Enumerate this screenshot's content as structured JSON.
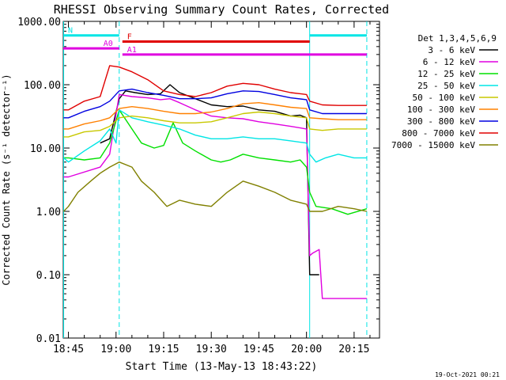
{
  "chart_data": {
    "type": "line",
    "title": "RHESSI Observing Summary Count Rates, Corrected",
    "ylabel": "Corrected Count Rate (s⁻¹ detector⁻¹)",
    "xlabel": "Start Time (13-May-13 18:43:22)",
    "yscale": "log",
    "ylim": [
      0.01,
      1000
    ],
    "xlim": [
      "18:43:22",
      "20:23"
    ],
    "y_ticks": [
      "0.01",
      "0.10",
      "1.00",
      "10.00",
      "100.00",
      "1000.00"
    ],
    "x_ticks": [
      "18:45",
      "19:00",
      "19:15",
      "19:30",
      "19:45",
      "20:00",
      "20:15"
    ],
    "legend_title": "Det 1,3,4,5,6,9",
    "legend_placement": "right, outside plot",
    "footer_date": "19-Oct-2021 00:21",
    "flag_bars": [
      {
        "label": "N",
        "color": "#00e5e5",
        "segments": [
          [
            "18:43:22",
            "19:01"
          ],
          [
            "20:01",
            "20:19"
          ]
        ],
        "y": 600
      },
      {
        "label": "F",
        "color": "#e00000",
        "segments": [
          [
            "19:02",
            "20:01"
          ]
        ],
        "y": 480
      },
      {
        "label": "A0",
        "color": "#e000e0",
        "segments": [
          [
            "18:43:22",
            "19:01"
          ]
        ],
        "y": 375
      },
      {
        "label": "A1",
        "color": "#e000e0",
        "segments": [
          [
            "19:02",
            "20:19"
          ]
        ],
        "y": 300
      }
    ],
    "vertical_markers": [
      {
        "time": "18:43:30",
        "style": "solid",
        "color": "#00e5e5"
      },
      {
        "time": "19:01",
        "style": "dashed",
        "color": "#00e5e5"
      },
      {
        "time": "20:01",
        "style": "solid",
        "color": "#00e5e5"
      },
      {
        "time": "20:19",
        "style": "dashed",
        "color": "#00e5e5"
      }
    ],
    "series": [
      {
        "name": "3 - 6 keV",
        "color": "#000000",
        "points": [
          [
            "18:55",
            12
          ],
          [
            "18:58",
            14
          ],
          [
            "19:01",
            60
          ],
          [
            "19:03",
            80
          ],
          [
            "19:06",
            75
          ],
          [
            "19:10",
            70
          ],
          [
            "19:14",
            72
          ],
          [
            "19:17",
            100
          ],
          [
            "19:20",
            75
          ],
          [
            "19:25",
            60
          ],
          [
            "19:30",
            48
          ],
          [
            "19:35",
            45
          ],
          [
            "19:40",
            46
          ],
          [
            "19:45",
            40
          ],
          [
            "19:50",
            38
          ],
          [
            "19:55",
            32
          ],
          [
            "19:58",
            33
          ],
          [
            "20:00",
            30
          ],
          [
            "20:01",
            0.1
          ],
          [
            "20:02",
            0.1
          ],
          [
            "20:04",
            0.1
          ]
        ]
      },
      {
        "name": "6 - 12 keV",
        "color": "#e000e0",
        "points": [
          [
            "18:43:30",
            3.5
          ],
          [
            "18:45",
            3.5
          ],
          [
            "18:55",
            5
          ],
          [
            "18:58",
            8
          ],
          [
            "19:01",
            70
          ],
          [
            "19:05",
            65
          ],
          [
            "19:10",
            62
          ],
          [
            "19:14",
            58
          ],
          [
            "19:17",
            60
          ],
          [
            "19:20",
            52
          ],
          [
            "19:25",
            40
          ],
          [
            "19:30",
            32
          ],
          [
            "19:35",
            30
          ],
          [
            "19:40",
            29
          ],
          [
            "19:45",
            26
          ],
          [
            "19:50",
            24
          ],
          [
            "19:55",
            22
          ],
          [
            "20:00",
            20
          ],
          [
            "20:01",
            0.2
          ],
          [
            "20:02",
            0.22
          ],
          [
            "20:04",
            0.25
          ],
          [
            "20:05",
            0.042
          ],
          [
            "20:19",
            0.042
          ]
        ]
      },
      {
        "name": "12 - 25 keV",
        "color": "#00e000",
        "points": [
          [
            "18:43:30",
            7
          ],
          [
            "18:45",
            7
          ],
          [
            "18:50",
            6.5
          ],
          [
            "18:55",
            7
          ],
          [
            "18:58",
            12
          ],
          [
            "19:01",
            40
          ],
          [
            "19:05",
            20
          ],
          [
            "19:08",
            12
          ],
          [
            "19:12",
            10
          ],
          [
            "19:15",
            11
          ],
          [
            "19:18",
            25
          ],
          [
            "19:21",
            12
          ],
          [
            "19:25",
            9
          ],
          [
            "19:30",
            6.5
          ],
          [
            "19:33",
            6
          ],
          [
            "19:36",
            6.5
          ],
          [
            "19:40",
            8
          ],
          [
            "19:45",
            7
          ],
          [
            "19:50",
            6.5
          ],
          [
            "19:55",
            6
          ],
          [
            "19:58",
            6.5
          ],
          [
            "20:00",
            5
          ],
          [
            "20:01",
            2
          ],
          [
            "20:03",
            1.2
          ],
          [
            "20:08",
            1.1
          ],
          [
            "20:13",
            0.9
          ],
          [
            "20:19",
            1.1
          ]
        ]
      },
      {
        "name": "25 - 50 keV",
        "color": "#00e5e5",
        "points": [
          [
            "18:43:30",
            7
          ],
          [
            "18:45",
            6
          ],
          [
            "18:50",
            9
          ],
          [
            "18:55",
            13
          ],
          [
            "18:58",
            20
          ],
          [
            "19:00",
            12
          ],
          [
            "19:01",
            40
          ],
          [
            "19:05",
            30
          ],
          [
            "19:10",
            26
          ],
          [
            "19:15",
            23
          ],
          [
            "19:20",
            20
          ],
          [
            "19:25",
            16
          ],
          [
            "19:30",
            14
          ],
          [
            "19:35",
            14
          ],
          [
            "19:40",
            15
          ],
          [
            "19:45",
            14
          ],
          [
            "19:50",
            14
          ],
          [
            "19:55",
            13
          ],
          [
            "20:00",
            12
          ],
          [
            "20:01",
            8
          ],
          [
            "20:03",
            6
          ],
          [
            "20:06",
            7
          ],
          [
            "20:10",
            8
          ],
          [
            "20:15",
            7
          ],
          [
            "20:19",
            7
          ]
        ]
      },
      {
        "name": "50 - 100 keV",
        "color": "#c8c800",
        "points": [
          [
            "18:43:30",
            15
          ],
          [
            "18:45",
            15
          ],
          [
            "18:50",
            18
          ],
          [
            "18:55",
            19
          ],
          [
            "18:58",
            22
          ],
          [
            "19:01",
            30
          ],
          [
            "19:05",
            32
          ],
          [
            "19:10",
            30
          ],
          [
            "19:15",
            27
          ],
          [
            "19:20",
            25
          ],
          [
            "19:25",
            25
          ],
          [
            "19:30",
            26
          ],
          [
            "19:35",
            30
          ],
          [
            "19:40",
            35
          ],
          [
            "19:45",
            37
          ],
          [
            "19:50",
            35
          ],
          [
            "19:55",
            32
          ],
          [
            "20:00",
            30
          ],
          [
            "20:01",
            20
          ],
          [
            "20:05",
            19
          ],
          [
            "20:10",
            20
          ],
          [
            "20:15",
            20
          ],
          [
            "20:19",
            20
          ]
        ]
      },
      {
        "name": "100 - 300 keV",
        "color": "#ff8000",
        "points": [
          [
            "18:43:30",
            20
          ],
          [
            "18:45",
            20
          ],
          [
            "18:50",
            24
          ],
          [
            "18:55",
            27
          ],
          [
            "18:58",
            30
          ],
          [
            "19:01",
            42
          ],
          [
            "19:05",
            45
          ],
          [
            "19:10",
            42
          ],
          [
            "19:15",
            38
          ],
          [
            "19:20",
            35
          ],
          [
            "19:25",
            35
          ],
          [
            "19:30",
            37
          ],
          [
            "19:35",
            42
          ],
          [
            "19:40",
            50
          ],
          [
            "19:45",
            52
          ],
          [
            "19:50",
            48
          ],
          [
            "19:55",
            44
          ],
          [
            "20:00",
            42
          ],
          [
            "20:01",
            30
          ],
          [
            "20:05",
            29
          ],
          [
            "20:10",
            28
          ],
          [
            "20:15",
            28
          ],
          [
            "20:19",
            28
          ]
        ]
      },
      {
        "name": "300 - 800 keV",
        "color": "#0000e0",
        "points": [
          [
            "18:43:30",
            30
          ],
          [
            "18:45",
            30
          ],
          [
            "18:50",
            38
          ],
          [
            "18:55",
            45
          ],
          [
            "18:58",
            55
          ],
          [
            "19:01",
            80
          ],
          [
            "19:05",
            85
          ],
          [
            "19:10",
            75
          ],
          [
            "19:15",
            68
          ],
          [
            "19:20",
            60
          ],
          [
            "19:25",
            60
          ],
          [
            "19:30",
            62
          ],
          [
            "19:35",
            72
          ],
          [
            "19:40",
            80
          ],
          [
            "19:45",
            78
          ],
          [
            "19:50",
            70
          ],
          [
            "19:55",
            62
          ],
          [
            "20:00",
            58
          ],
          [
            "20:01",
            40
          ],
          [
            "20:05",
            35
          ],
          [
            "20:10",
            35
          ],
          [
            "20:15",
            35
          ],
          [
            "20:19",
            35
          ]
        ]
      },
      {
        "name": "800 - 7000 keV",
        "color": "#e00000",
        "points": [
          [
            "18:43:30",
            40
          ],
          [
            "18:45",
            40
          ],
          [
            "18:50",
            55
          ],
          [
            "18:55",
            65
          ],
          [
            "18:58",
            200
          ],
          [
            "19:01",
            190
          ],
          [
            "19:05",
            160
          ],
          [
            "19:10",
            120
          ],
          [
            "19:15",
            80
          ],
          [
            "19:20",
            70
          ],
          [
            "19:25",
            65
          ],
          [
            "19:30",
            75
          ],
          [
            "19:35",
            95
          ],
          [
            "19:40",
            105
          ],
          [
            "19:45",
            100
          ],
          [
            "19:50",
            85
          ],
          [
            "19:55",
            75
          ],
          [
            "20:00",
            70
          ],
          [
            "20:01",
            55
          ],
          [
            "20:05",
            48
          ],
          [
            "20:10",
            47
          ],
          [
            "20:15",
            47
          ],
          [
            "20:19",
            47
          ]
        ]
      },
      {
        "name": "7000 - 15000 keV",
        "color": "#808000",
        "points": [
          [
            "18:43:30",
            1
          ],
          [
            "18:45",
            1.2
          ],
          [
            "18:48",
            2
          ],
          [
            "18:52",
            3
          ],
          [
            "18:55",
            4
          ],
          [
            "18:58",
            5
          ],
          [
            "19:01",
            6
          ],
          [
            "19:05",
            5
          ],
          [
            "19:08",
            3
          ],
          [
            "19:12",
            2
          ],
          [
            "19:16",
            1.2
          ],
          [
            "19:20",
            1.5
          ],
          [
            "19:25",
            1.3
          ],
          [
            "19:30",
            1.2
          ],
          [
            "19:35",
            2
          ],
          [
            "19:40",
            3
          ],
          [
            "19:45",
            2.5
          ],
          [
            "19:50",
            2
          ],
          [
            "19:55",
            1.5
          ],
          [
            "20:00",
            1.3
          ],
          [
            "20:01",
            1
          ],
          [
            "20:05",
            1
          ],
          [
            "20:10",
            1.2
          ],
          [
            "20:15",
            1.1
          ],
          [
            "20:19",
            1
          ]
        ]
      }
    ]
  }
}
